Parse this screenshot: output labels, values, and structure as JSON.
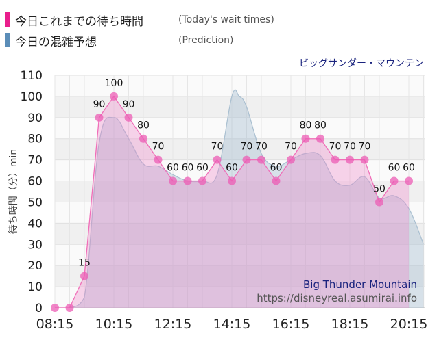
{
  "legend": [
    {
      "label": "今日これまでの待ち時間",
      "note": "(Today's wait times)",
      "color": "#e91e8c"
    },
    {
      "label": "今日の混雑予想",
      "note": "(Prediction)",
      "color": "#5b8db8"
    }
  ],
  "attraction_jp": "ビッグサンダー・マウンテン",
  "watermark": {
    "name": "Big Thunder Mountain",
    "url": "https://disneyreal.asumirai.info"
  },
  "chart_data": {
    "type": "area",
    "ylabel": "待ち時間（分）min",
    "ylim": [
      0,
      110
    ],
    "yticks": [
      0,
      10,
      20,
      30,
      40,
      50,
      60,
      70,
      80,
      90,
      100,
      110
    ],
    "xtick_labels": [
      "08:15",
      "10:15",
      "12:15",
      "14:15",
      "16:15",
      "18:15",
      "20:15"
    ],
    "grid": true,
    "series": [
      {
        "name": "今日これまでの待ち時間",
        "color": "#e91e8c",
        "x": [
          "08:15",
          "08:45",
          "09:15",
          "09:45",
          "10:15",
          "10:45",
          "11:15",
          "11:45",
          "12:15",
          "12:45",
          "13:15",
          "13:45",
          "14:15",
          "14:45",
          "15:15",
          "15:45",
          "16:15",
          "16:45",
          "17:15",
          "17:45",
          "18:15",
          "18:45",
          "19:15",
          "19:45",
          "20:15"
        ],
        "values": [
          0,
          0,
          15,
          90,
          100,
          90,
          80,
          70,
          60,
          60,
          60,
          70,
          60,
          70,
          70,
          60,
          70,
          80,
          80,
          70,
          70,
          70,
          50,
          60,
          60
        ]
      },
      {
        "name": "今日の混雑予想",
        "color": "#5b8db8",
        "x": [
          "08:15",
          "08:45",
          "09:15",
          "09:45",
          "10:15",
          "10:45",
          "11:15",
          "11:45",
          "12:15",
          "12:45",
          "13:15",
          "13:45",
          "14:15",
          "14:30",
          "14:45",
          "15:15",
          "15:45",
          "16:15",
          "16:45",
          "17:15",
          "17:45",
          "18:15",
          "18:45",
          "19:15",
          "19:45",
          "20:15",
          "20:45"
        ],
        "values": [
          0,
          0,
          5,
          78,
          90,
          80,
          68,
          67,
          63,
          60,
          60,
          63,
          100,
          100,
          95,
          73,
          67,
          70,
          73,
          72,
          60,
          58,
          62,
          52,
          53,
          47,
          30
        ]
      }
    ]
  }
}
